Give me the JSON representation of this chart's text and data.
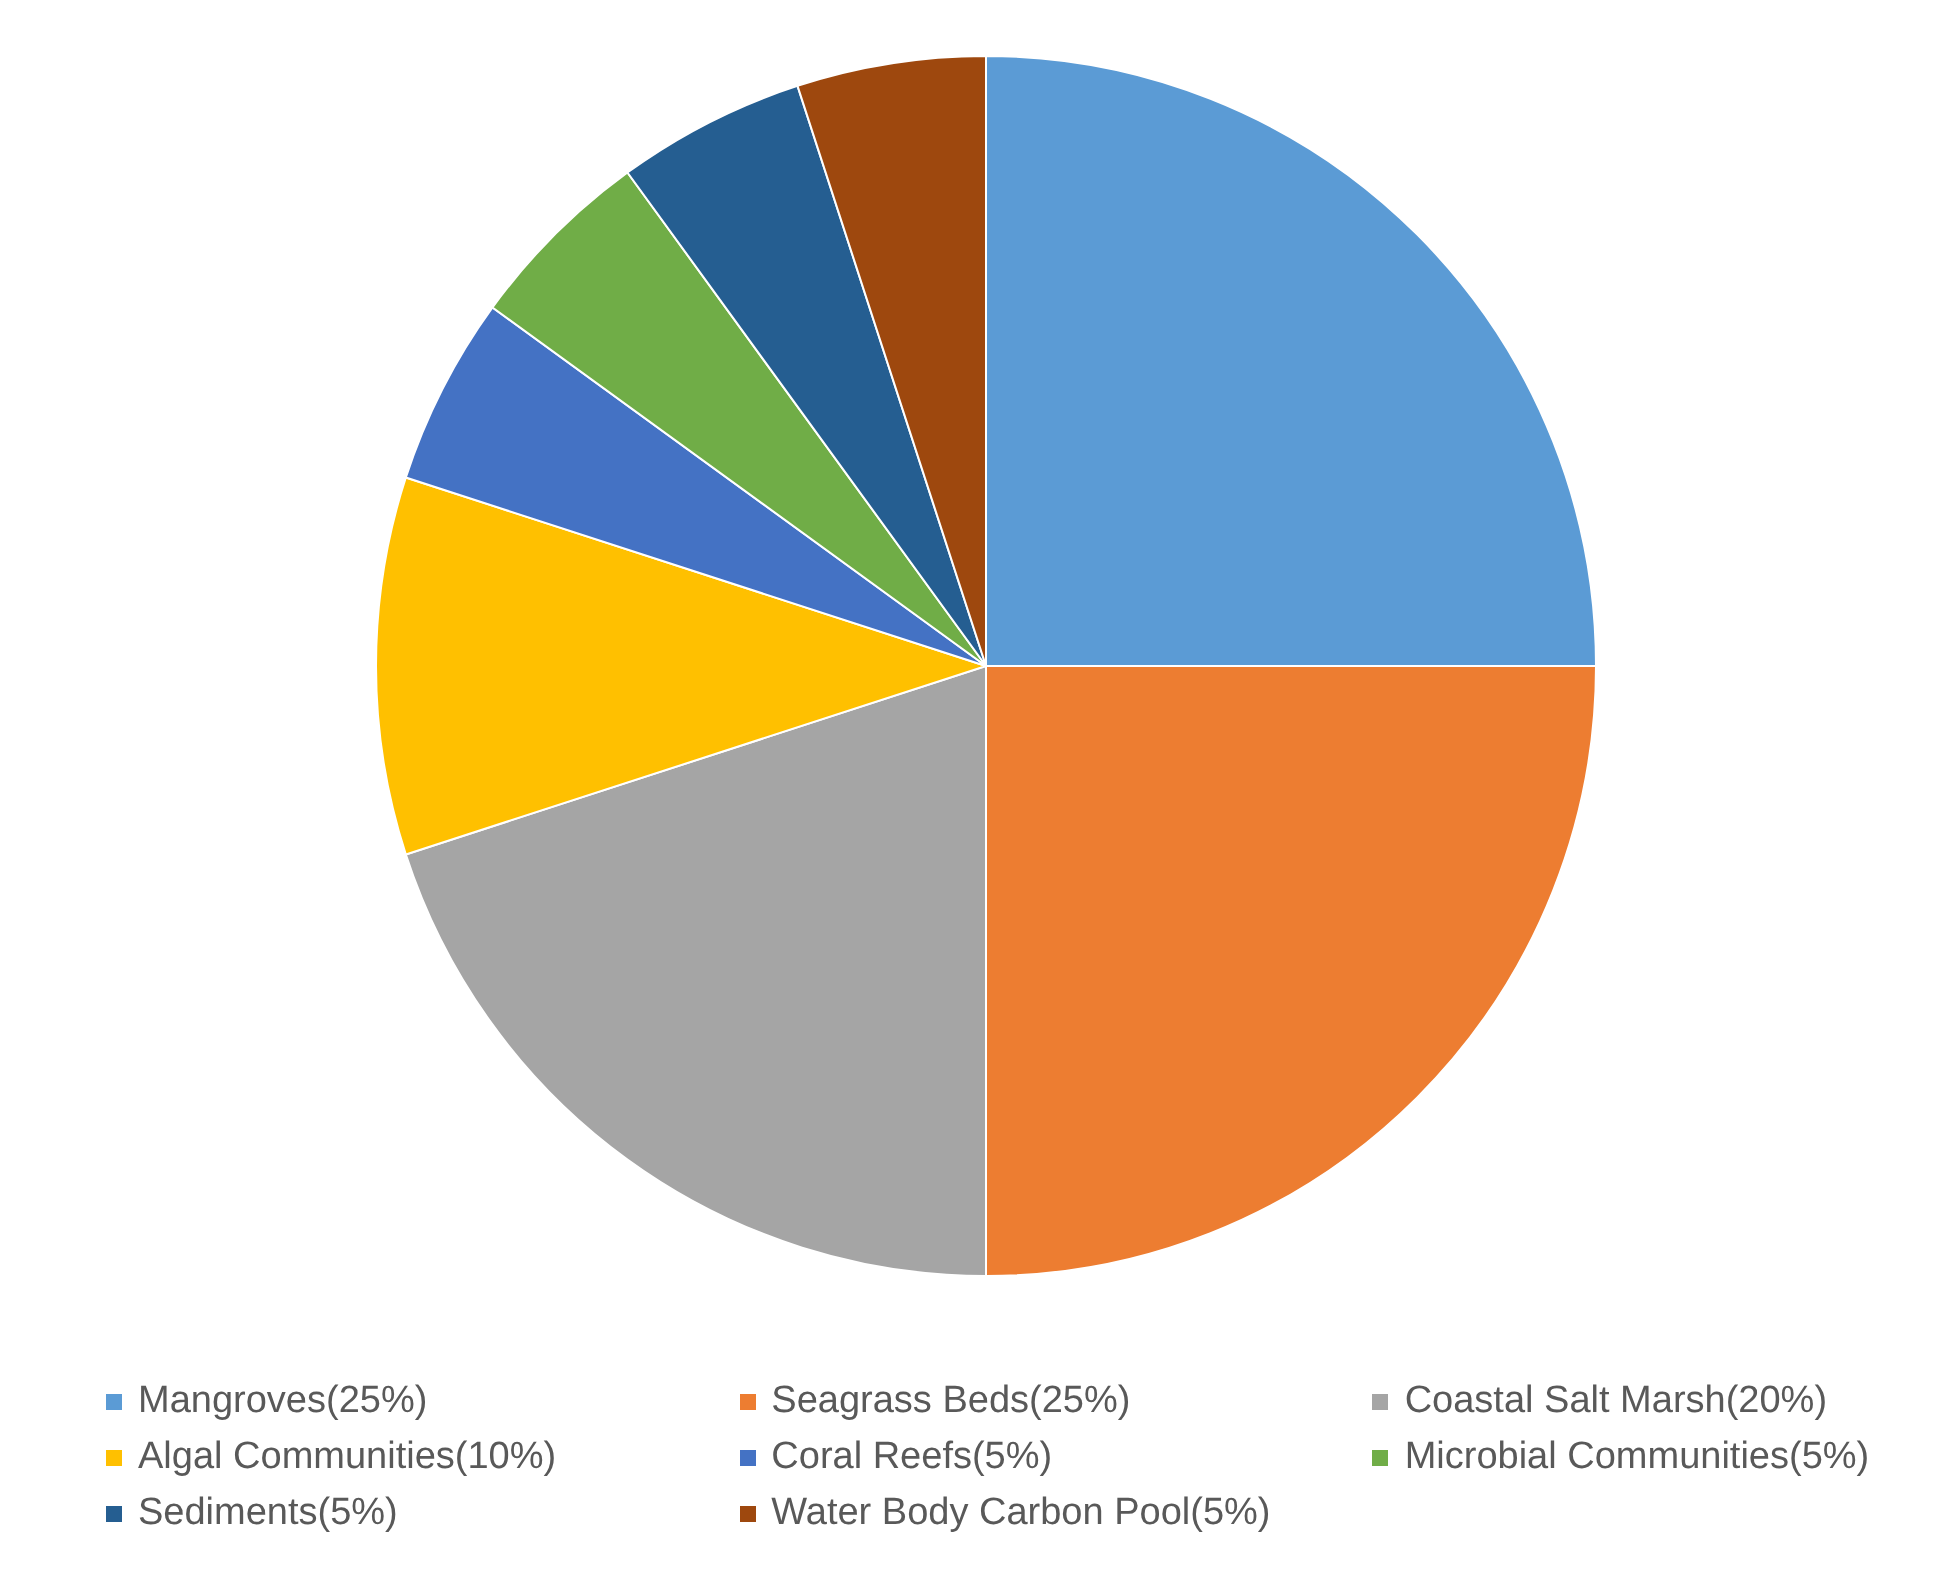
{
  "chart_data": {
    "type": "pie",
    "categories": [
      "Mangroves(25%)",
      "Seagrass Beds(25%)",
      "Coastal Salt Marsh(20%)",
      "Algal Communities(10%)",
      "Coral Reefs(5%)",
      "Microbial Communities(5%)",
      "Sediments(5%)",
      "Water Body Carbon Pool(5%)"
    ],
    "values": [
      25,
      25,
      20,
      10,
      5,
      5,
      5,
      5
    ],
    "colors": [
      "#5b9bd5",
      "#ed7d31",
      "#a5a5a5",
      "#ffc000",
      "#4472c4",
      "#70ad47",
      "#255e91",
      "#9e480e"
    ],
    "legend": "bottom"
  }
}
